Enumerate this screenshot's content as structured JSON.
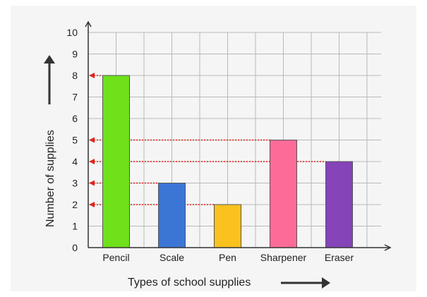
{
  "chart_data": {
    "type": "bar",
    "categories": [
      "Pencil",
      "Scale",
      "Pen",
      "Sharpener",
      "Eraser"
    ],
    "values": [
      8,
      3,
      2,
      5,
      4
    ],
    "colors": [
      "#6ee11a",
      "#3b76d6",
      "#fbc21f",
      "#fd6c99",
      "#8544b7"
    ],
    "xlabel": "Types of school supplies",
    "ylabel": "Number of supplies",
    "ylim": [
      0,
      10
    ],
    "yticks": [
      0,
      1,
      2,
      3,
      4,
      5,
      6,
      7,
      8,
      9,
      10
    ],
    "grid": true,
    "reference_lines": {
      "color": "#e0241d",
      "style": "dotted-with-arrowhead-to-y-axis",
      "levels": [
        8,
        5,
        4,
        3,
        2
      ]
    },
    "axis_arrows": {
      "xlabel_arrow": "right-arrow-icon",
      "ylabel_arrow": "up-arrow-icon"
    }
  }
}
